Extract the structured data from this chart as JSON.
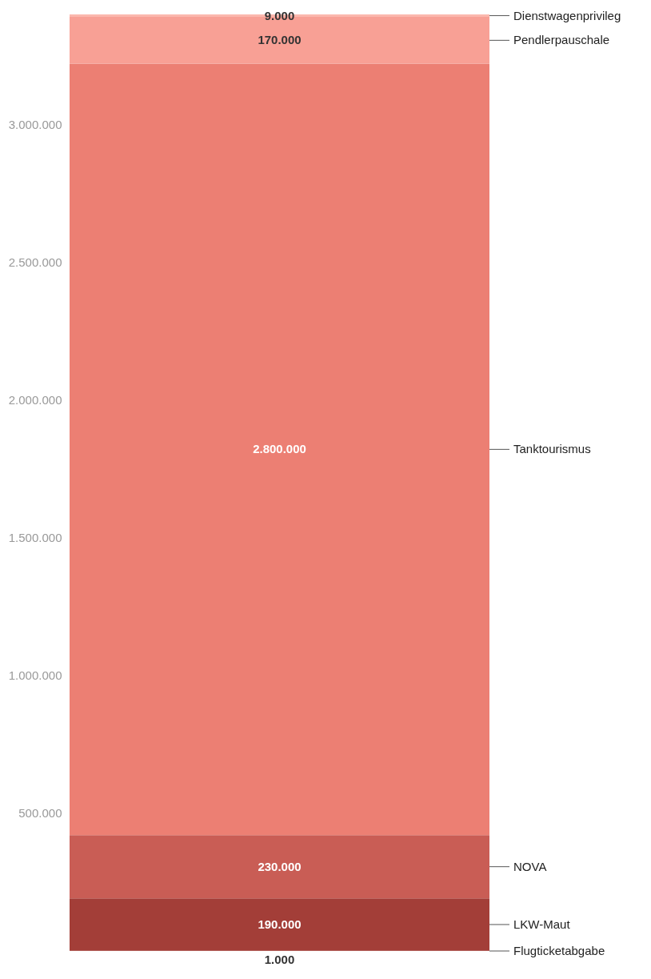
{
  "chart_data": {
    "type": "bar",
    "stacked": true,
    "categories": [
      null
    ],
    "legend": false,
    "grid": false,
    "ylim": [
      0,
      3400000
    ],
    "yticks": [
      {
        "value": 500000,
        "label": "500.000"
      },
      {
        "value": 1000000,
        "label": "1.000.000"
      },
      {
        "value": 1500000,
        "label": "1.500.000"
      },
      {
        "value": 2000000,
        "label": "2.000.000"
      },
      {
        "value": 2500000,
        "label": "2.500.000"
      },
      {
        "value": 3000000,
        "label": "3.000.000"
      }
    ],
    "series": [
      {
        "name": "Flugticketabgabe",
        "color": "#8e2b26",
        "values": [
          1000
        ],
        "value_labels": [
          "1.000"
        ]
      },
      {
        "name": "LKW-Maut",
        "color": "#a33e38",
        "values": [
          190000
        ],
        "value_labels": [
          "190.000"
        ]
      },
      {
        "name": "NOVA",
        "color": "#c95d55",
        "values": [
          230000
        ],
        "value_labels": [
          "230.000"
        ]
      },
      {
        "name": "Tanktourismus",
        "color": "#ec7f73",
        "values": [
          2800000
        ],
        "value_labels": [
          "2.800.000"
        ]
      },
      {
        "name": "Pendlerpauschale",
        "color": "#f8a095",
        "values": [
          170000
        ],
        "value_labels": [
          "170.000"
        ]
      },
      {
        "name": "Dienstwagenprivileg",
        "color": "#fbb8ae",
        "values": [
          9000
        ],
        "value_labels": [
          "9.000"
        ]
      }
    ]
  }
}
